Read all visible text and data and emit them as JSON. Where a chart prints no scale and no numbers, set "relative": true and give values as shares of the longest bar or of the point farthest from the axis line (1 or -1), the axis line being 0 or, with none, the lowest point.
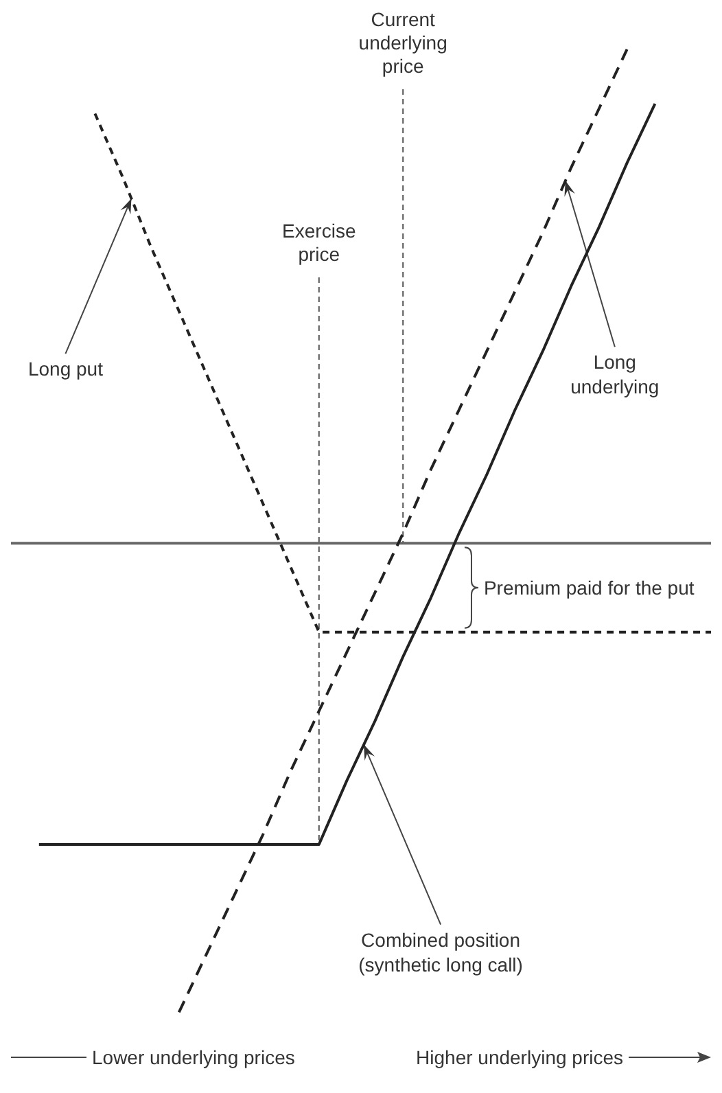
{
  "chart_data": {
    "type": "line",
    "relative": true,
    "tick_labels": false,
    "categories": [
      null,
      null,
      null,
      null,
      null,
      null,
      null,
      null,
      null,
      null,
      null,
      null,
      null,
      null,
      null,
      null,
      null,
      null,
      null,
      null,
      null,
      null,
      null,
      null,
      null,
      null
    ],
    "series": [
      {
        "color": "#222222",
        "line_style": "dotted",
        "values": [
          null,
          null,
          null,
          0.87,
          0.74,
          0.6,
          0.47,
          0.34,
          0.21,
          0.08,
          -0.05,
          -0.18,
          -0.18,
          -0.18,
          -0.18,
          -0.18,
          -0.18,
          -0.18,
          -0.18,
          -0.18,
          -0.18,
          -0.18,
          -0.18,
          -0.18,
          -0.18,
          -0.18
        ]
      },
      {
        "color": "#222222",
        "line_style": "dashed",
        "values": [
          null,
          null,
          null,
          null,
          null,
          null,
          -0.95,
          -0.83,
          -0.71,
          -0.59,
          -0.46,
          -0.34,
          -0.22,
          -0.1,
          0.02,
          0.15,
          0.27,
          0.39,
          0.51,
          0.63,
          0.76,
          0.88,
          1.0,
          null,
          null,
          null
        ]
      },
      {
        "color": "#222222",
        "line_style": "solid",
        "values": [
          null,
          -0.61,
          -0.61,
          -0.61,
          -0.61,
          -0.61,
          -0.61,
          -0.61,
          -0.61,
          -0.61,
          -0.61,
          -0.61,
          -0.48,
          -0.36,
          -0.23,
          -0.11,
          0.02,
          0.14,
          0.27,
          0.39,
          0.52,
          0.64,
          0.77,
          0.89,
          null,
          null
        ]
      }
    ],
    "annotations": [
      "Current underlying price",
      "Exercise price",
      "Long put",
      "Long underlying",
      "Combined position (synthetic long call)",
      "Premium paid for the put",
      "Lower underlying prices",
      "Higher underlying prices"
    ]
  }
}
